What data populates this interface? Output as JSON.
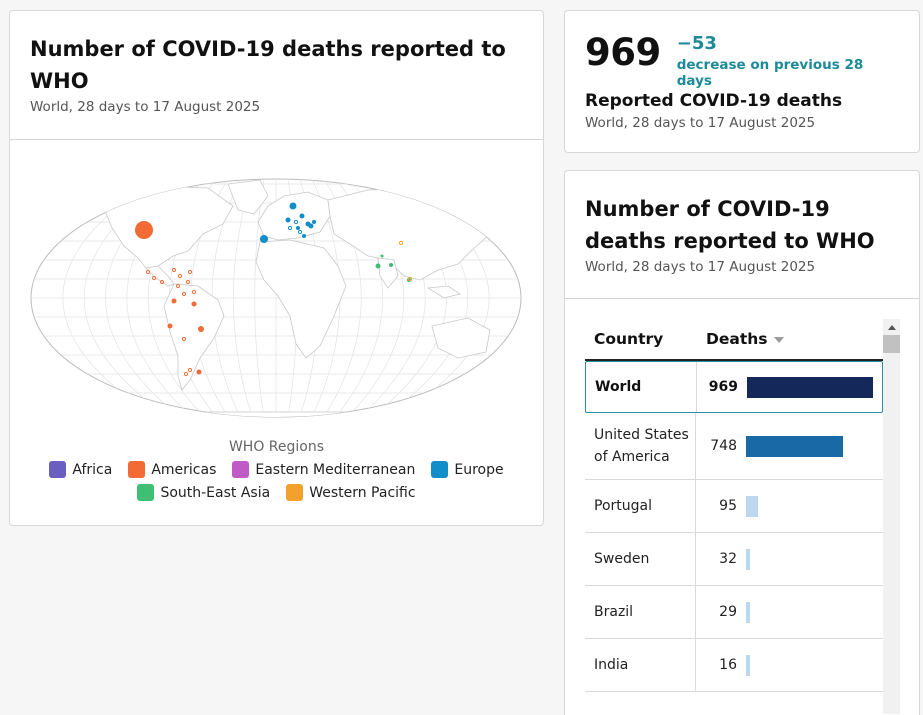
{
  "map_card": {
    "title": "Number of COVID-19 deaths reported to WHO",
    "subtitle": "World, 28 days to 17 August 2025",
    "legend_title": "WHO Regions",
    "legend": [
      {
        "label": "Africa",
        "color": "#6a5fc1"
      },
      {
        "label": "Americas",
        "color": "#f26b35"
      },
      {
        "label": "Eastern Mediterranean",
        "color": "#c05ac4"
      },
      {
        "label": "Europe",
        "color": "#118dc9"
      },
      {
        "label": "South-East Asia",
        "color": "#3fbf73"
      },
      {
        "label": "Western Pacific",
        "color": "#f2a22c"
      }
    ]
  },
  "kpi": {
    "value": "969",
    "change": "−53",
    "change_desc": "decrease on previous 28 days",
    "label": "Reported COVID-19 deaths",
    "subtitle": "World, 28 days to 17 August 2025"
  },
  "table_card": {
    "title": "Number of COVID-19 deaths reported to WHO",
    "subtitle": "World, 28 days to 17 August 2025",
    "col_country": "Country",
    "col_deaths": "Deaths",
    "max": 969,
    "rows": [
      {
        "country": "World",
        "deaths": 969,
        "color": "#14295a"
      },
      {
        "country": "United States of America",
        "deaths": 748,
        "color": "#1969a6"
      },
      {
        "country": "Portugal",
        "deaths": 95,
        "color": "#bdd7ee"
      },
      {
        "country": "Sweden",
        "deaths": 32,
        "color": "#bdd7ee"
      },
      {
        "country": "Brazil",
        "deaths": 29,
        "color": "#bdd7ee"
      },
      {
        "country": "India",
        "deaths": 16,
        "color": "#bdd7ee"
      }
    ]
  }
}
